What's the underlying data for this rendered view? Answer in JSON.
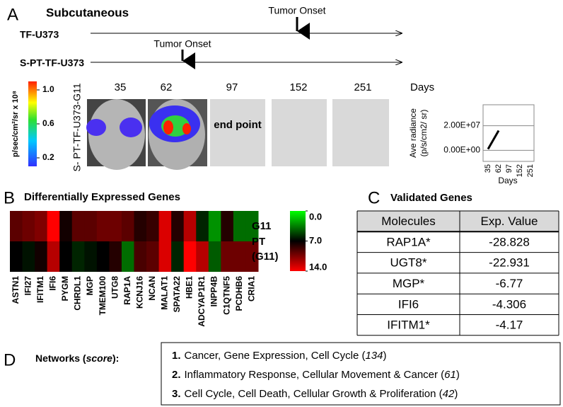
{
  "panel_a": {
    "letter": "A",
    "title": "Subcutaneous",
    "timelines": [
      {
        "label": "TF-U373",
        "event": "Tumor Onset"
      },
      {
        "label": "S-PT-TF-U373",
        "event": "Tumor Onset"
      }
    ],
    "colorbar": {
      "label": "p/sec/cm²/sr x 10⁸",
      "lim": [
        0.1,
        1.1
      ],
      "ticks": [
        {
          "value": 1,
          "label": "1.0"
        },
        0.6,
        0.2
      ]
    },
    "sample": "S- PT-TF-U373-G11",
    "days": [
      35,
      62,
      97,
      152,
      251
    ],
    "days_label": "Days",
    "end_point": "end point",
    "chart_data": {
      "type": "line",
      "ylabel": [
        "Ave radiance",
        "(p/s/cm2/ sr)"
      ],
      "xlabel": "Days",
      "categories": [
        "35",
        "62",
        "97",
        "152",
        "251"
      ],
      "values": [
        1000000,
        16000000,
        null,
        null,
        null
      ],
      "color": "#000000",
      "ylim": [
        -9000000,
        37000000
      ],
      "yticks": [
        {
          "value": 0,
          "label": "0.00E+00"
        },
        {
          "value": 20000000,
          "label": "2.00E+07"
        }
      ],
      "grid": true
    }
  },
  "panel_b": {
    "letter": "B",
    "title": "Differentially Expressed Genes",
    "type": "heatmap",
    "rows": [
      "G11",
      "PT (G11)"
    ],
    "genes": [
      "ASTN1",
      "IFI27",
      "IFITM1",
      "IFI6",
      "PYGM",
      "CHRDL1",
      "MGP",
      "TMEM100",
      "UTG8",
      "RAP1A",
      "KCNJ16",
      "NCAN",
      "MALAT1",
      "SPATA22",
      "HBE1",
      "ADCYAP1R1",
      "INPP4B",
      "C1QTNF5",
      "PCDHB6",
      "CRIA1"
    ],
    "values": [
      [
        9.5,
        10,
        10.5,
        14,
        7.5,
        9.5,
        9.5,
        10,
        10,
        9.5,
        8,
        8.5,
        13,
        8,
        12,
        6,
        3,
        8,
        4,
        4
      ],
      [
        7,
        6.5,
        7.5,
        12,
        7,
        6,
        6.5,
        7,
        8,
        4,
        9,
        9.5,
        13,
        6,
        14,
        12,
        4.5,
        10,
        10,
        10
      ]
    ],
    "lim": [
      0,
      14
    ],
    "ticks": [
      {
        "value": 0,
        "label": "0.0"
      },
      {
        "value": 7,
        "label": "7.0"
      },
      {
        "value": 14,
        "label": "14.0"
      }
    ]
  },
  "panel_c": {
    "letter": "C",
    "title": "Validated Genes",
    "header": [
      "Molecules",
      "Exp. Value"
    ],
    "rows": [
      [
        "RAP1A*",
        -28.828
      ],
      [
        "UGT8*",
        -22.931
      ],
      [
        "MGP*",
        -6.77
      ],
      [
        "IFI6",
        -4.306
      ],
      [
        "IFITM1*",
        -4.17
      ]
    ]
  },
  "panel_d": {
    "letter": "D",
    "label": [
      "Networks (",
      "score",
      "):"
    ],
    "networks": [
      {
        "num": "1.",
        "text": "Cancer, Gene Expression, Cell Cycle (",
        "score": 134,
        "end": ")"
      },
      {
        "num": "2.",
        "text": "Inflammatory Response, Cellular Movement &   Cancer (",
        "score": 61,
        "end": ")"
      },
      {
        "num": "3.",
        "text": "Cell Cycle, Cell Death, Cellular Growth & Proliferation (",
        "score": 42,
        "end": ")"
      }
    ]
  }
}
